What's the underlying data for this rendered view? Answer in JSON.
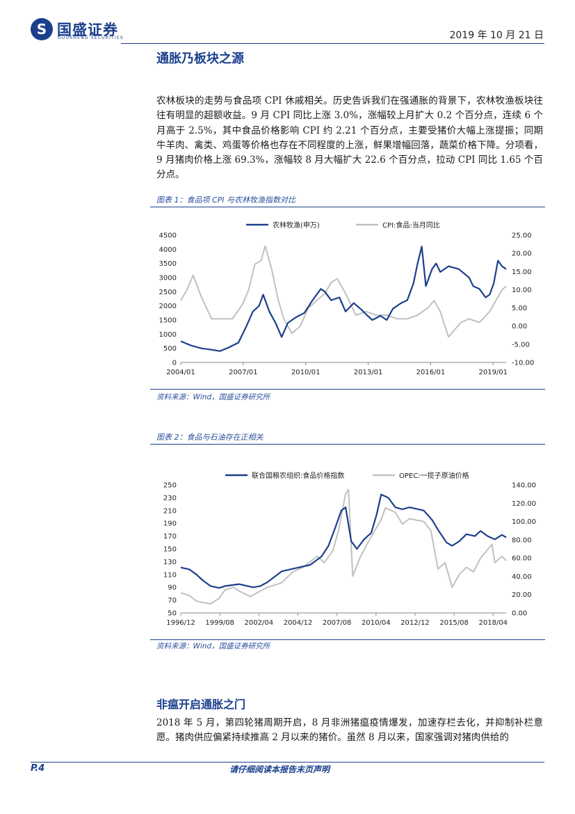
{
  "header": {
    "logo_glyph": "S",
    "brand_cn": "国盛证券",
    "brand_en": "GUOSHENG SECURITIES",
    "date": "2019 年 10 月 21 日"
  },
  "section1": {
    "title": "通胀乃板块之源",
    "paragraph": "农林板块的走势与食品项 CPI 休戚相关。历史告诉我们在强通胀的背景下，农林牧渔板块往往有明显的超额收益。9 月 CPI 同比上涨 3.0%，涨幅较上月扩大 0.2 个百分点，连续 6 个月高于 2.5%，其中食品价格影响 CPI 约 2.21 个百分点，主要受猪价大幅上涨提振；同期牛羊肉、禽类、鸡蛋等价格也存在不同程度的上涨，鲜果增幅回落，蔬菜价格下降。分项看，9 月猪肉价格上涨 69.3%，涨幅较 8 月大幅扩大 22.6 个百分点，拉动 CPI 同比 1.65 个百分点。"
  },
  "figure1": {
    "caption": "图表 1：食品项 CPI 与农林牧渔指数对比",
    "source": "资料来源：Wind，国盛证券研究所"
  },
  "figure2": {
    "caption": "图表 2：食品与石油存在正相关",
    "source": "资料来源：Wind，国盛证券研究所"
  },
  "section2": {
    "title": "非瘟开启通胀之门",
    "paragraph": "2018 年 5 月，第四轮猪周期开启，8 月非洲猪瘟疫情爆发，加速存栏去化，并抑制补栏意愿。猪肉供应偏紧持续推高 2 月以来的猪价。虽然 8 月以来，国家强调对猪肉供给的"
  },
  "footer": {
    "page": "P.4",
    "disclaimer": "请仔细阅读本报告末页声明"
  },
  "chart_data": [
    {
      "type": "line",
      "legend_placement": "top",
      "x_ticks": [
        "2004/01",
        "2007/01",
        "2010/01",
        "2013/01",
        "2016/01",
        "2019/01"
      ],
      "x_range": [
        2004.0,
        2019.8
      ],
      "y_left": {
        "ticks": [
          "0",
          "500",
          "1000",
          "1500",
          "2000",
          "2500",
          "3000",
          "3500",
          "4000",
          "4500"
        ],
        "range": [
          0,
          4500
        ]
      },
      "y_right": {
        "ticks": [
          "-10.00",
          "-5.00",
          "0.00",
          "5.00",
          "10.00",
          "15.00",
          "20.00",
          "25.00"
        ],
        "range": [
          -10,
          25
        ]
      },
      "series": [
        {
          "name": "农林牧渔(申万)",
          "axis": "left",
          "color": "#1a3f8c",
          "x": [
            2004.0,
            2004.5,
            2005.0,
            2005.5,
            2005.9,
            2006.3,
            2006.8,
            2007.2,
            2007.5,
            2007.8,
            2008.0,
            2008.3,
            2008.6,
            2008.9,
            2009.2,
            2009.6,
            2010.0,
            2010.4,
            2010.8,
            2011.0,
            2011.3,
            2011.7,
            2012.0,
            2012.4,
            2012.8,
            2013.0,
            2013.3,
            2013.7,
            2014.0,
            2014.3,
            2014.7,
            2015.0,
            2015.3,
            2015.5,
            2015.7,
            2015.9,
            2016.2,
            2016.4,
            2016.6,
            2017.0,
            2017.5,
            2018.0,
            2018.2,
            2018.5,
            2018.8,
            2019.0,
            2019.2,
            2019.4,
            2019.6,
            2019.8
          ],
          "y": [
            750,
            600,
            500,
            450,
            400,
            520,
            700,
            1300,
            1800,
            2000,
            2400,
            1800,
            1400,
            900,
            1400,
            1600,
            1750,
            2200,
            2600,
            2500,
            2200,
            2300,
            1800,
            2100,
            1850,
            1700,
            1500,
            1650,
            1500,
            1900,
            2100,
            2200,
            2800,
            3500,
            4100,
            2700,
            3300,
            3500,
            3200,
            3400,
            3300,
            3000,
            2700,
            2600,
            2300,
            2400,
            2800,
            3600,
            3400,
            3300
          ]
        },
        {
          "name": "CPI:食品:当月同比",
          "axis": "right",
          "color": "#c0c0c0",
          "x": [
            2004.0,
            2004.3,
            2004.6,
            2005.0,
            2005.5,
            2006.0,
            2006.5,
            2007.0,
            2007.3,
            2007.6,
            2007.9,
            2008.1,
            2008.4,
            2008.7,
            2009.0,
            2009.4,
            2009.8,
            2010.2,
            2010.6,
            2011.0,
            2011.3,
            2011.6,
            2012.0,
            2012.5,
            2013.0,
            2013.5,
            2014.0,
            2014.5,
            2015.0,
            2015.5,
            2016.0,
            2016.3,
            2016.6,
            2017.0,
            2017.3,
            2017.6,
            2018.0,
            2018.5,
            2019.0,
            2019.3,
            2019.6,
            2019.8
          ],
          "y": [
            7,
            10,
            14,
            8,
            2,
            2,
            2,
            6,
            10,
            17,
            18,
            22,
            16,
            8,
            2,
            -2,
            0,
            5,
            7,
            9,
            12,
            13,
            9,
            3,
            4,
            3,
            3,
            2,
            2,
            3,
            5,
            7,
            4,
            -3,
            -1,
            1,
            2,
            1,
            4,
            7,
            10,
            11
          ]
        }
      ]
    },
    {
      "type": "line",
      "legend_placement": "top",
      "x_ticks": [
        "1996/12",
        "1999/08",
        "2002/04",
        "2004/12",
        "2007/08",
        "2010/04",
        "2012/12",
        "2015/08",
        "2018/04"
      ],
      "x_range": [
        1996.9,
        2019.8
      ],
      "y_left": {
        "ticks": [
          "50",
          "70",
          "90",
          "110",
          "130",
          "150",
          "170",
          "190",
          "210",
          "230",
          "250"
        ],
        "range": [
          50,
          250
        ]
      },
      "y_right": {
        "ticks": [
          "0.00",
          "20.00",
          "40.00",
          "60.00",
          "80.00",
          "100.00",
          "120.00",
          "140.00"
        ],
        "range": [
          0,
          140
        ]
      },
      "series": [
        {
          "name": "联合国粮农组织:食品价格指数",
          "axis": "left",
          "color": "#1a3f8c",
          "x": [
            1996.9,
            1997.5,
            1998.0,
            1998.5,
            1999.0,
            1999.6,
            2000.0,
            2001.0,
            2002.0,
            2002.5,
            2003.0,
            2004.0,
            2005.0,
            2006.0,
            2006.8,
            2007.3,
            2007.8,
            2008.2,
            2008.5,
            2008.9,
            2009.3,
            2009.8,
            2010.3,
            2010.7,
            2011.0,
            2011.5,
            2012.0,
            2012.5,
            2013.0,
            2014.0,
            2014.6,
            2015.0,
            2015.6,
            2016.0,
            2016.5,
            2017.0,
            2017.6,
            2018.0,
            2018.5,
            2019.0,
            2019.5,
            2019.8
          ],
          "y": [
            121,
            118,
            110,
            100,
            92,
            89,
            92,
            95,
            90,
            92,
            98,
            115,
            120,
            125,
            138,
            155,
            185,
            210,
            215,
            162,
            150,
            165,
            175,
            205,
            235,
            230,
            215,
            212,
            215,
            210,
            195,
            180,
            160,
            155,
            162,
            173,
            170,
            178,
            170,
            165,
            172,
            168
          ]
        },
        {
          "name": "OPEC:一揽子原油价格",
          "axis": "right",
          "color": "#c0c0c0",
          "x": [
            1996.9,
            1997.5,
            1998.0,
            1998.6,
            1999.0,
            1999.6,
            2000.0,
            2000.6,
            2001.0,
            2001.8,
            2002.5,
            2003.0,
            2004.0,
            2004.8,
            2005.5,
            2006.5,
            2007.0,
            2007.6,
            2008.0,
            2008.5,
            2008.7,
            2009.0,
            2009.5,
            2010.0,
            2011.0,
            2011.3,
            2012.0,
            2012.5,
            2013.0,
            2014.0,
            2014.5,
            2015.0,
            2015.5,
            2016.0,
            2016.5,
            2017.0,
            2017.5,
            2018.0,
            2018.8,
            2019.0,
            2019.5,
            2019.8
          ],
          "y": [
            22,
            19,
            13,
            11,
            10,
            16,
            25,
            28,
            24,
            18,
            24,
            28,
            33,
            45,
            50,
            62,
            55,
            68,
            90,
            130,
            135,
            40,
            60,
            75,
            102,
            115,
            110,
            97,
            103,
            100,
            90,
            48,
            55,
            28,
            42,
            50,
            45,
            60,
            75,
            55,
            62,
            57
          ]
        }
      ]
    }
  ]
}
